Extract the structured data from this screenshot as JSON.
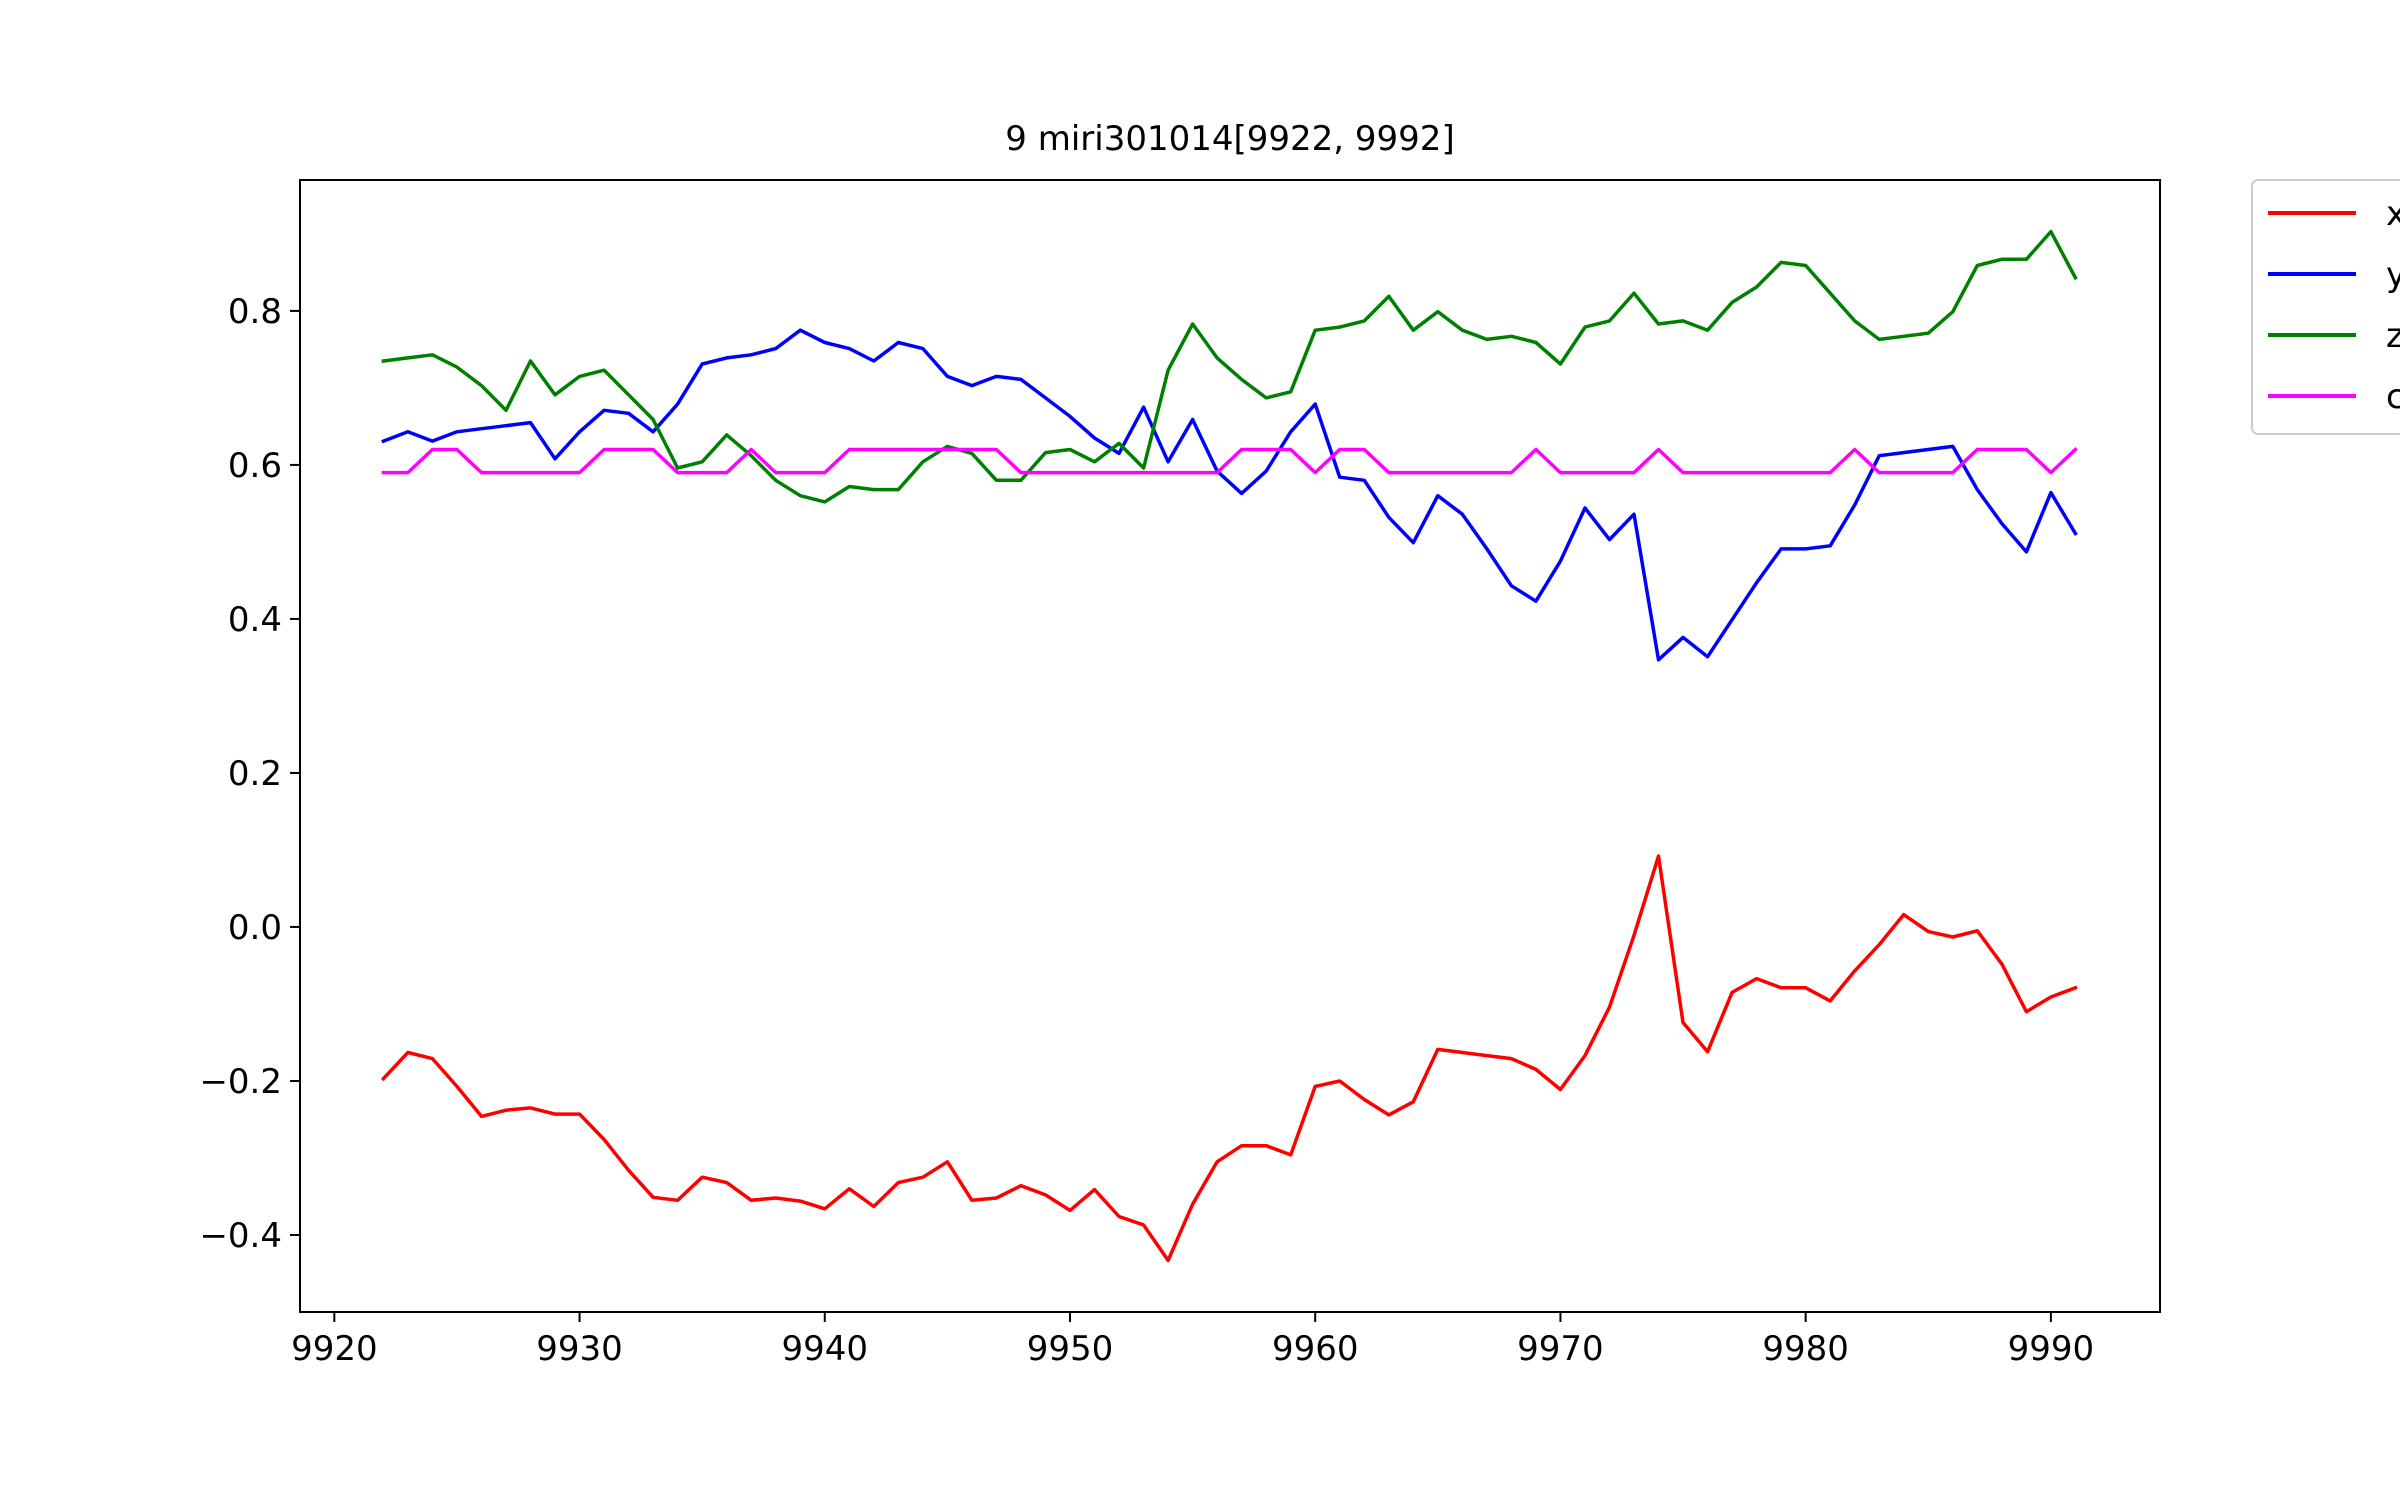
{
  "chart_data": {
    "type": "line",
    "title": "9 miri301014[9922, 9992]",
    "xlabel": "",
    "ylabel": "",
    "xlim": [
      9918.6,
      9994.45
    ],
    "ylim": [
      -0.5,
      0.97
    ],
    "xticks": [
      9920,
      9930,
      9940,
      9950,
      9960,
      9970,
      9980,
      9990
    ],
    "yticks": [
      -0.4,
      -0.2,
      0.0,
      0.2,
      0.4,
      0.6,
      0.8
    ],
    "ytick_labels": [
      "−0.4",
      "−0.2",
      "0.0",
      "0.2",
      "0.4",
      "0.6",
      "0.8"
    ],
    "grid": false,
    "legend_position": "outside-top-right",
    "x": [
      9922,
      9923,
      9924,
      9925,
      9926,
      9927,
      9928,
      9929,
      9930,
      9931,
      9932,
      9933,
      9934,
      9935,
      9936,
      9937,
      9938,
      9939,
      9940,
      9941,
      9942,
      9943,
      9944,
      9945,
      9946,
      9947,
      9948,
      9949,
      9950,
      9951,
      9952,
      9953,
      9954,
      9955,
      9956,
      9957,
      9958,
      9959,
      9960,
      9961,
      9962,
      9963,
      9964,
      9965,
      9966,
      9967,
      9968,
      9969,
      9970,
      9971,
      9972,
      9973,
      9974,
      9975,
      9976,
      9977,
      9978,
      9979,
      9980,
      9981,
      9982,
      9983,
      9984,
      9985,
      9986,
      9987,
      9988,
      9989,
      9990,
      9991
    ],
    "series": [
      {
        "name": "x",
        "color": "#ff0000",
        "values": [
          -0.197,
          -0.163,
          -0.171,
          -0.207,
          -0.246,
          -0.238,
          -0.235,
          -0.243,
          -0.243,
          -0.276,
          -0.316,
          -0.351,
          -0.355,
          -0.325,
          -0.332,
          -0.355,
          -0.352,
          -0.356,
          -0.366,
          -0.34,
          -0.363,
          -0.332,
          -0.325,
          -0.305,
          -0.355,
          -0.352,
          -0.336,
          -0.348,
          -0.368,
          -0.341,
          -0.376,
          -0.387,
          -0.433,
          -0.36,
          -0.305,
          -0.284,
          -0.284,
          -0.296,
          -0.207,
          -0.2,
          -0.224,
          -0.244,
          -0.227,
          -0.159,
          -0.163,
          -0.167,
          -0.171,
          -0.185,
          -0.211,
          -0.167,
          -0.104,
          -0.011,
          0.092,
          -0.124,
          -0.162,
          -0.085,
          -0.067,
          -0.079,
          -0.079,
          -0.096,
          -0.057,
          -0.023,
          0.016,
          -0.006,
          -0.013,
          -0.005,
          -0.048,
          -0.11,
          -0.091,
          -0.079
        ]
      },
      {
        "name": "y",
        "color": "#0000ff",
        "values": [
          0.631,
          0.643,
          0.631,
          0.643,
          0.647,
          0.651,
          0.655,
          0.608,
          0.643,
          0.671,
          0.667,
          0.643,
          0.679,
          0.731,
          0.739,
          0.743,
          0.751,
          0.775,
          0.759,
          0.751,
          0.735,
          0.759,
          0.751,
          0.715,
          0.703,
          0.715,
          0.711,
          0.687,
          0.663,
          0.635,
          0.615,
          0.675,
          0.604,
          0.659,
          0.592,
          0.563,
          0.592,
          0.643,
          0.679,
          0.584,
          0.58,
          0.532,
          0.499,
          0.56,
          0.536,
          0.491,
          0.443,
          0.423,
          0.475,
          0.544,
          0.503,
          0.536,
          0.347,
          0.376,
          0.351,
          0.399,
          0.447,
          0.491,
          0.491,
          0.495,
          0.548,
          0.612,
          0.616,
          0.62,
          0.624,
          0.568,
          0.524,
          0.487,
          0.564,
          0.511
        ]
      },
      {
        "name": "z",
        "color": "#008000",
        "values": [
          0.735,
          0.739,
          0.743,
          0.727,
          0.703,
          0.671,
          0.735,
          0.691,
          0.715,
          0.723,
          0.691,
          0.659,
          0.596,
          0.604,
          0.639,
          0.612,
          0.58,
          0.56,
          0.552,
          0.572,
          0.568,
          0.568,
          0.604,
          0.624,
          0.615,
          0.58,
          0.58,
          0.616,
          0.62,
          0.604,
          0.628,
          0.596,
          0.723,
          0.783,
          0.739,
          0.711,
          0.687,
          0.695,
          0.775,
          0.779,
          0.787,
          0.819,
          0.775,
          0.799,
          0.775,
          0.763,
          0.767,
          0.759,
          0.731,
          0.779,
          0.787,
          0.823,
          0.783,
          0.787,
          0.775,
          0.811,
          0.831,
          0.863,
          0.859,
          0.823,
          0.787,
          0.763,
          0.767,
          0.771,
          0.799,
          0.859,
          0.867,
          0.867,
          0.903,
          0.843
        ]
      },
      {
        "name": "c",
        "color": "#ff00ff",
        "values": [
          0.59,
          0.59,
          0.62,
          0.62,
          0.59,
          0.59,
          0.59,
          0.59,
          0.59,
          0.62,
          0.62,
          0.62,
          0.59,
          0.59,
          0.59,
          0.62,
          0.59,
          0.59,
          0.59,
          0.62,
          0.62,
          0.62,
          0.62,
          0.62,
          0.62,
          0.62,
          0.59,
          0.59,
          0.59,
          0.59,
          0.59,
          0.59,
          0.59,
          0.59,
          0.59,
          0.62,
          0.62,
          0.62,
          0.59,
          0.62,
          0.62,
          0.59,
          0.59,
          0.59,
          0.59,
          0.59,
          0.59,
          0.62,
          0.59,
          0.59,
          0.59,
          0.59,
          0.62,
          0.59,
          0.59,
          0.59,
          0.59,
          0.59,
          0.59,
          0.59,
          0.62,
          0.59,
          0.59,
          0.59,
          0.59,
          0.62,
          0.62,
          0.62,
          0.59,
          0.62
        ]
      }
    ]
  }
}
